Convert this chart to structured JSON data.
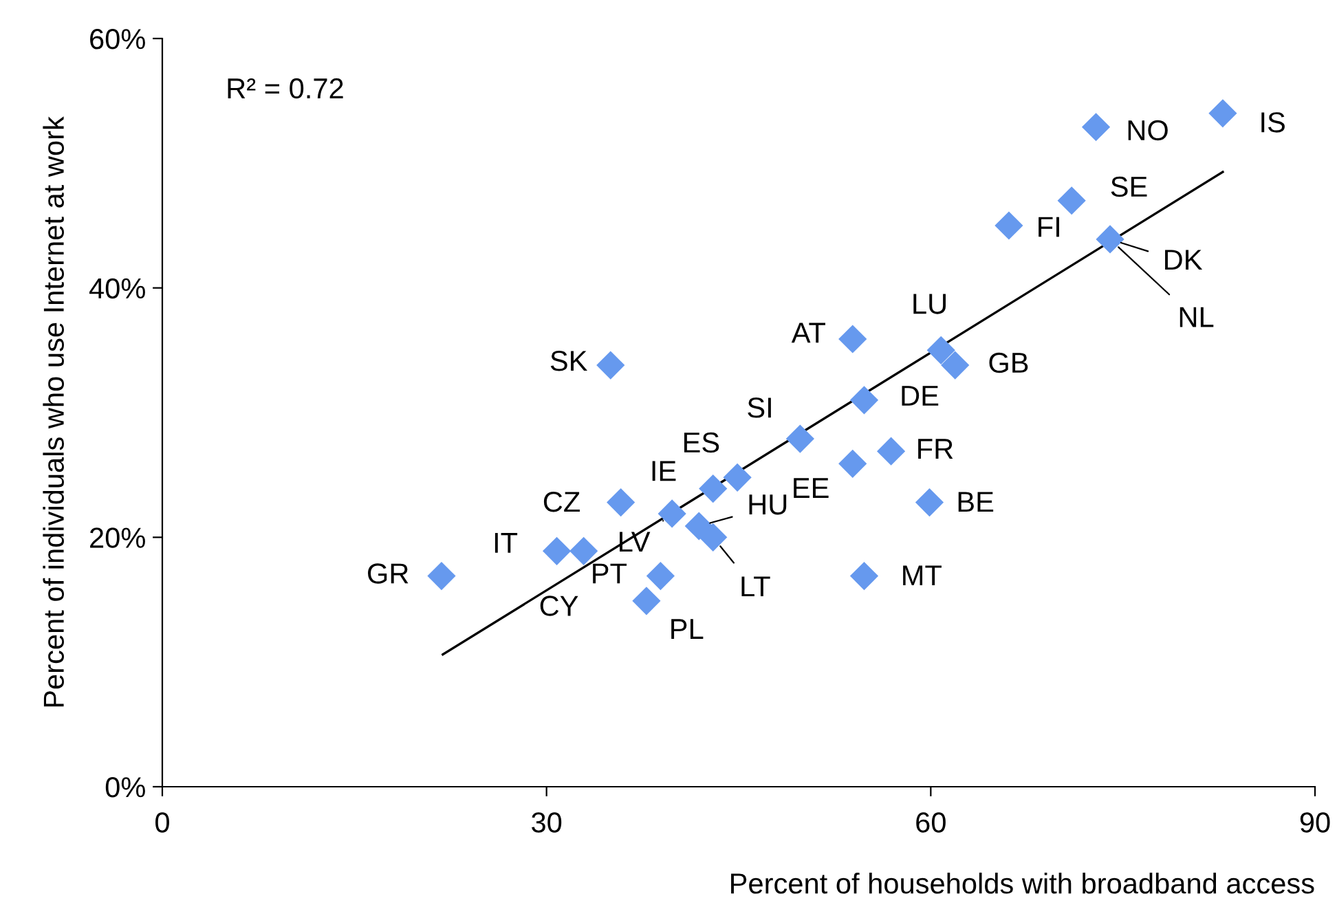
{
  "chart_data": {
    "type": "scatter",
    "xlabel": "Percent of households with broadband access",
    "ylabel": "Percent of individuals who use Internet at work",
    "xlim": [
      0,
      90
    ],
    "xticks": [
      0,
      30,
      60,
      90
    ],
    "ylim": [
      0,
      60
    ],
    "yticks": [
      {
        "value": 0,
        "label": "0%"
      },
      {
        "value": 20,
        "label": "20%"
      },
      {
        "value": 40,
        "label": "40%"
      },
      {
        "value": 60,
        "label": "60%"
      }
    ],
    "grid": false,
    "series": [
      {
        "marker": "diamond",
        "color": "#6699ee",
        "x": [
          82.8,
          72.9,
          71.0,
          66.1,
          74.0,
          53.9,
          60.8,
          61.9,
          35.0,
          54.8,
          49.8,
          56.9,
          53.9,
          44.9,
          43.0,
          59.9,
          35.8,
          39.8,
          41.9,
          43.0,
          30.8,
          32.9,
          21.8,
          38.9,
          54.8,
          37.8
        ],
        "values": [
          54.0,
          52.9,
          47.0,
          45.0,
          43.9,
          35.9,
          35.0,
          33.8,
          33.8,
          31.0,
          27.9,
          26.9,
          25.9,
          24.8,
          23.9,
          22.8,
          22.8,
          21.9,
          20.9,
          20.0,
          18.9,
          18.9,
          16.9,
          16.9,
          16.9,
          14.9
        ]
      },
      {
        "type": "line",
        "marker": "none",
        "color": "#000000",
        "x": [
          21.9,
          82.8
        ],
        "values": [
          10.6,
          49.3
        ]
      }
    ],
    "annotations": [
      "R² = 0.72",
      {
        "text": "IS",
        "x": 82.8,
        "y": 54.0
      },
      {
        "text": "NO",
        "x": 72.9,
        "y": 52.9
      },
      {
        "text": "SE",
        "x": 71.0,
        "y": 47.0
      },
      {
        "text": "FI",
        "x": 66.1,
        "y": 45.0
      },
      {
        "text": "DK",
        "x": 74.0,
        "y": 43.9
      },
      {
        "text": "NL",
        "x": 74.0,
        "y": 43.9
      },
      {
        "text": "AT",
        "x": 53.9,
        "y": 35.9
      },
      {
        "text": "LU",
        "x": 60.8,
        "y": 35.0
      },
      {
        "text": "GB",
        "x": 61.9,
        "y": 33.8
      },
      {
        "text": "SK",
        "x": 35.0,
        "y": 33.8
      },
      {
        "text": "DE",
        "x": 54.8,
        "y": 31.0
      },
      {
        "text": "SI",
        "x": 49.8,
        "y": 27.9
      },
      {
        "text": "FR",
        "x": 56.9,
        "y": 26.9
      },
      {
        "text": "EE",
        "x": 53.9,
        "y": 25.9
      },
      {
        "text": "ES",
        "x": 44.9,
        "y": 24.8
      },
      {
        "text": "IE",
        "x": 43.0,
        "y": 23.9
      },
      {
        "text": "BE",
        "x": 59.9,
        "y": 22.8
      },
      {
        "text": "CZ",
        "x": 35.8,
        "y": 22.8
      },
      {
        "text": "LV",
        "x": 39.8,
        "y": 21.9
      },
      {
        "text": "HU",
        "x": 41.9,
        "y": 20.9
      },
      {
        "text": "LT",
        "x": 43.0,
        "y": 20.0
      },
      {
        "text": "IT",
        "x": 30.8,
        "y": 18.9
      },
      {
        "text": "CY",
        "x": 32.9,
        "y": 18.9
      },
      {
        "text": "GR",
        "x": 21.8,
        "y": 16.9
      },
      {
        "text": "PT",
        "x": 38.9,
        "y": 16.9
      },
      {
        "text": "MT",
        "x": 54.8,
        "y": 16.9
      },
      {
        "text": "PL",
        "x": 37.8,
        "y": 14.9
      }
    ]
  }
}
